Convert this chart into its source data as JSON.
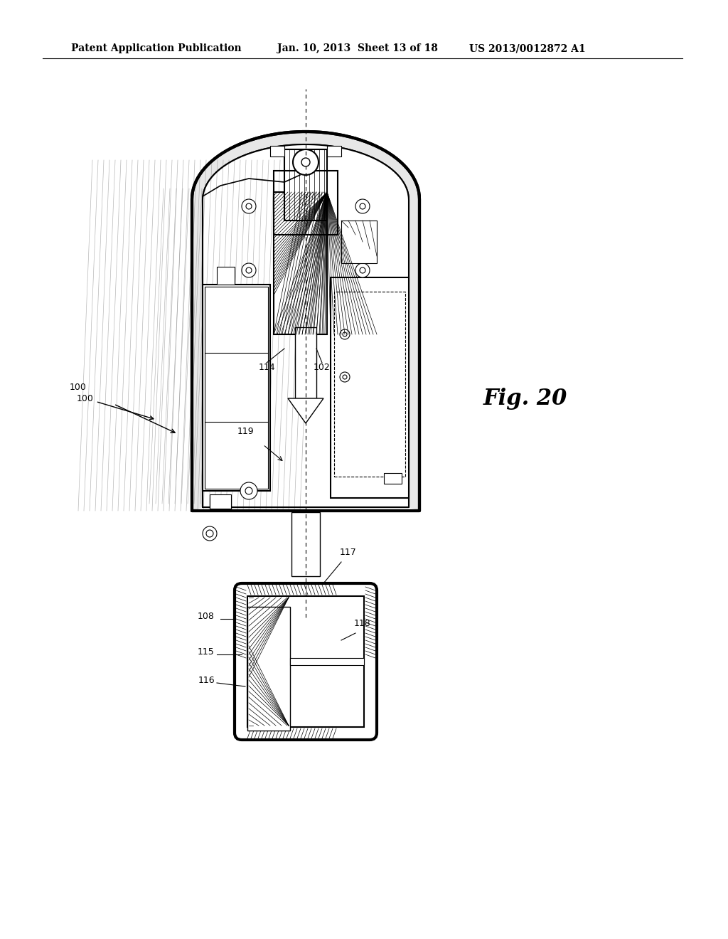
{
  "background_color": "#ffffff",
  "header_left": "Patent Application Publication",
  "header_center": "Jan. 10, 2013  Sheet 13 of 18",
  "header_right": "US 2013/0012872 A1",
  "fig_label": "Fig. 20",
  "ref_100": "100",
  "ref_102": "102",
  "ref_108": "108",
  "ref_114": "114",
  "ref_115": "115",
  "ref_116": "116",
  "ref_117": "117",
  "ref_118": "118",
  "ref_119": "119"
}
